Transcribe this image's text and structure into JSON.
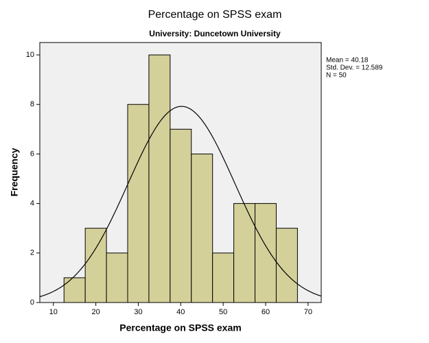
{
  "chart_data": {
    "type": "histogram",
    "title": "Percentage on SPSS exam",
    "subtitle": "University: Duncetown University",
    "x_label": "Percentage on SPSS exam",
    "y_label": "Frequency",
    "bins": [
      12.5,
      17.5,
      22.5,
      27.5,
      32.5,
      37.5,
      42.5,
      47.5,
      52.5,
      57.5,
      62.5,
      67.5
    ],
    "values": [
      1,
      3,
      2,
      8,
      10,
      7,
      6,
      2,
      4,
      4,
      3
    ],
    "color": "#d4d09a",
    "xlim": [
      6.8,
      73.1
    ],
    "xticks": [
      10,
      20,
      30,
      40,
      50,
      60,
      70
    ],
    "ylim": [
      0,
      10.5
    ],
    "yticks": [
      0,
      2,
      4,
      6,
      8,
      10
    ],
    "stats": {
      "values": [
        40.18,
        12.589,
        50
      ],
      "value_labels": [
        "Mean = 40.18",
        "Std. Dev. = 12.589",
        "N = 50"
      ]
    }
  }
}
